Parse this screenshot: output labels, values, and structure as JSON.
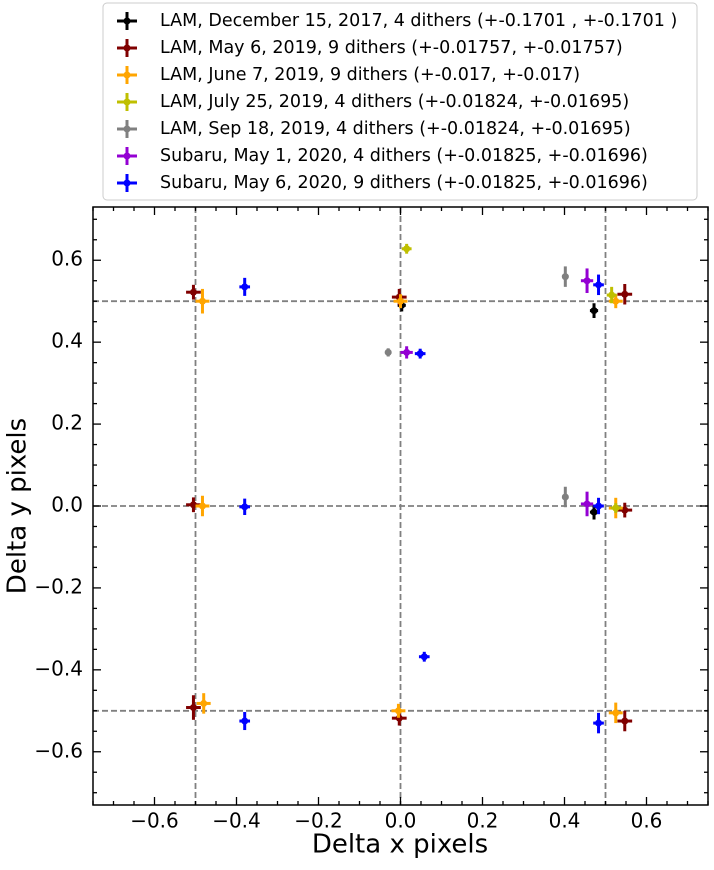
{
  "chart_data": {
    "type": "scatter",
    "x_label": "Delta x pixels",
    "y_label": "Delta y pixels",
    "xlim": [
      -0.75,
      0.75
    ],
    "ylim": [
      -0.73,
      0.73
    ],
    "xticks": [
      {
        "value": -0.6,
        "label": "−0.6"
      },
      {
        "value": -0.4,
        "label": "−0.4"
      },
      {
        "value": -0.2,
        "label": "−0.2"
      },
      {
        "value": 0,
        "label": "0.0"
      },
      0.2,
      0.4,
      0.6
    ],
    "yticks": [
      {
        "value": -0.6,
        "label": "−0.6"
      },
      {
        "value": -0.4,
        "label": "−0.4"
      },
      {
        "value": -0.2,
        "label": "−0.2"
      },
      {
        "value": 0,
        "label": "0.0"
      },
      0.2,
      0.4,
      0.6
    ],
    "vlines": [
      -0.5,
      0,
      0.5
    ],
    "hlines": [
      -0.5,
      0,
      0.5
    ],
    "legend_position": "top",
    "series": [
      {
        "name": "LAM, December 15, 2017, 4 dithers (+-0.1701 , +-0.1701 )",
        "color": "#000000",
        "x": [
          0.003,
          0.472,
          0.472
        ],
        "y": [
          0.49,
          0.477,
          -0.015
        ],
        "xerr": [
          0.01,
          0.01,
          0.01
        ],
        "yerr": [
          0.015,
          0.018,
          0.018
        ]
      },
      {
        "name": "LAM, May 6, 2019, 9 dithers (+-0.01757, +-0.01757)",
        "color": "#800000",
        "x": [
          -0.505,
          -0.003,
          0.547,
          -0.505,
          0.547,
          -0.505,
          -0.003,
          0.547
        ],
        "y": [
          0.522,
          0.51,
          0.517,
          0.003,
          -0.01,
          -0.492,
          -0.518,
          -0.525
        ],
        "xerr": [
          0.018,
          0.018,
          0.018,
          0.018,
          0.018,
          0.018,
          0.018,
          0.018
        ],
        "yerr": [
          0.018,
          0.02,
          0.025,
          0.018,
          0.018,
          0.03,
          0.018,
          0.025
        ]
      },
      {
        "name": "LAM, June 7, 2019, 9 dithers (+-0.017, +-0.017)",
        "color": "#ffa500",
        "x": [
          -0.483,
          0.0,
          0.525,
          -0.483,
          0.525,
          -0.48,
          -0.005,
          0.525
        ],
        "y": [
          0.5,
          0.5,
          0.5,
          0.0,
          -0.005,
          -0.482,
          -0.5,
          -0.505
        ],
        "xerr": [
          0.017,
          0.017,
          0.017,
          0.017,
          0.017,
          0.017,
          0.017,
          0.017
        ],
        "yerr": [
          0.03,
          0.017,
          0.017,
          0.025,
          0.025,
          0.025,
          0.017,
          0.025
        ]
      },
      {
        "name": "LAM, July 25, 2019, 4 dithers (+-0.01824, +-0.01695)",
        "color": "#bfbf00",
        "x": [
          0.015,
          0.515,
          0.525
        ],
        "y": [
          0.628,
          0.515,
          -0.005
        ],
        "xerr": [
          0.012,
          0.012,
          0.012
        ],
        "yerr": [
          0.012,
          0.02,
          0.012
        ]
      },
      {
        "name": "LAM, Sep 18, 2019, 4 dithers (+-0.01824, +-0.01695)",
        "color": "#808080",
        "x": [
          -0.03,
          0.402,
          0.402
        ],
        "y": [
          0.375,
          0.56,
          0.022
        ],
        "xerr": [
          0.008,
          0.008,
          0.008
        ],
        "yerr": [
          0.01,
          0.025,
          0.025
        ]
      },
      {
        "name": "Subaru, May 1, 2020, 4 dithers (+-0.01825, +-0.01696)",
        "color": "#9400d3",
        "x": [
          0.015,
          0.455,
          0.455
        ],
        "y": [
          0.375,
          0.55,
          0.005
        ],
        "xerr": [
          0.015,
          0.015,
          0.015
        ],
        "yerr": [
          0.015,
          0.03,
          0.03
        ]
      },
      {
        "name": "Subaru, May 6, 2020, 9 dithers (+-0.01825, +-0.01696)",
        "color": "#0000ff",
        "x": [
          -0.38,
          0.048,
          0.483,
          -0.38,
          0.483,
          0.058,
          -0.38,
          0.483
        ],
        "y": [
          0.535,
          0.372,
          0.54,
          -0.002,
          0.0,
          -0.368,
          -0.525,
          -0.53
        ],
        "xerr": [
          0.013,
          0.013,
          0.013,
          0.013,
          0.013,
          0.013,
          0.013,
          0.013
        ],
        "yerr": [
          0.022,
          0.012,
          0.025,
          0.02,
          0.02,
          0.012,
          0.022,
          0.025
        ]
      }
    ]
  }
}
